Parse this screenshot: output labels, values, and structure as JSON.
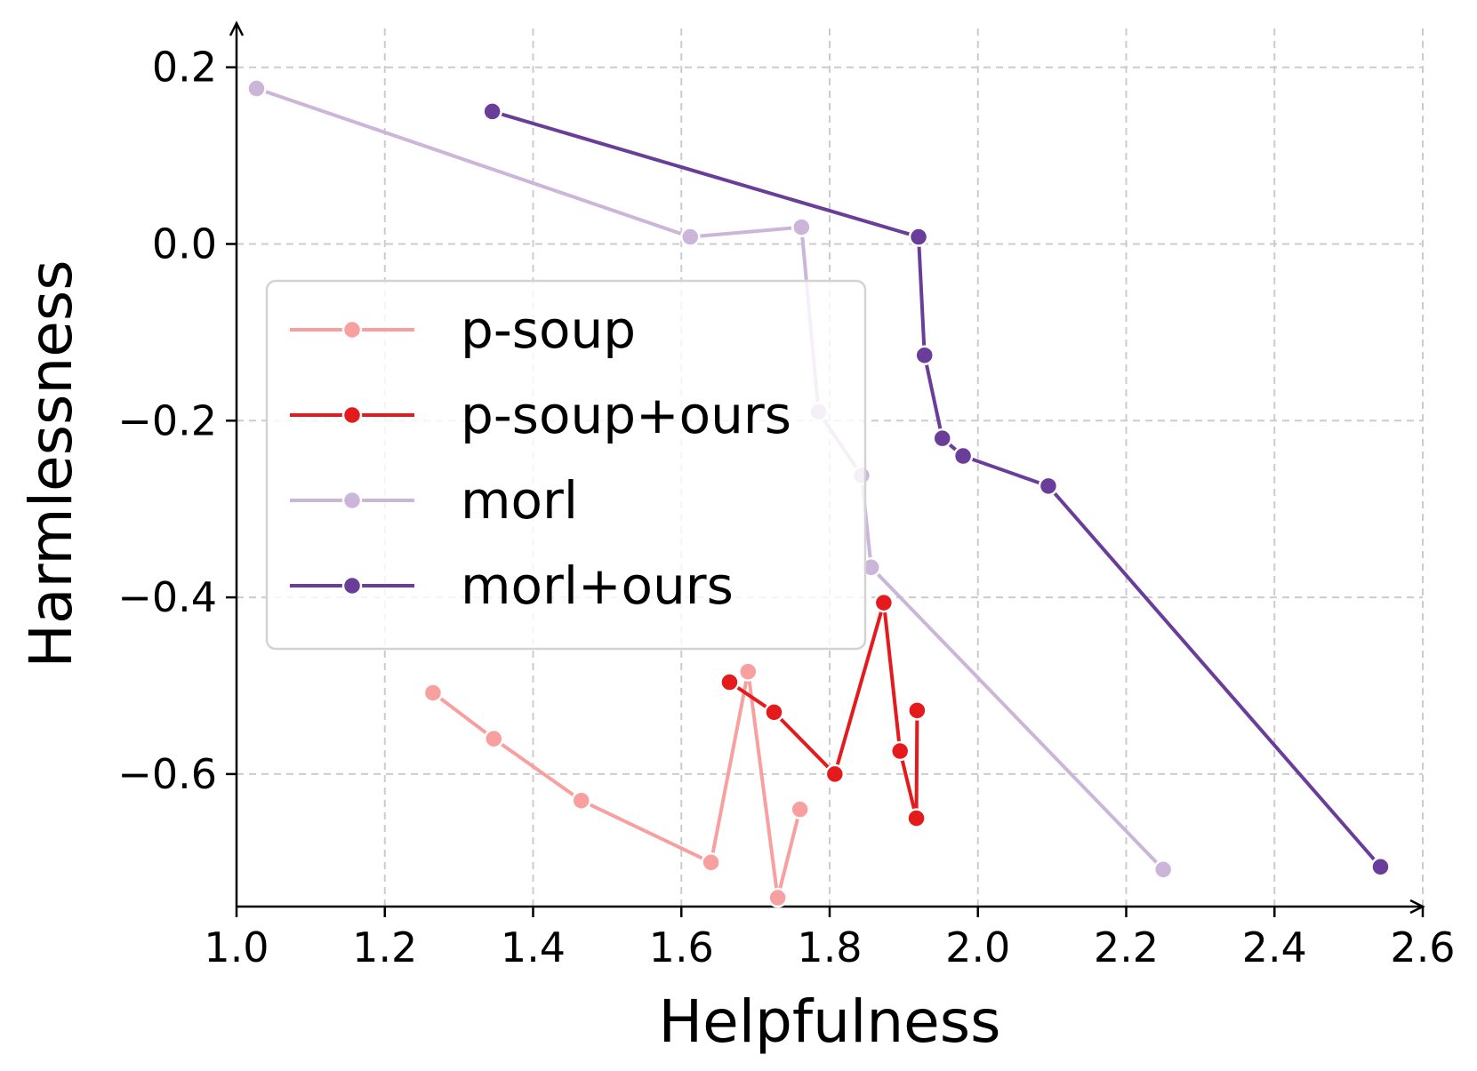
{
  "chart_data": {
    "type": "line",
    "xlabel": "Helpfulness",
    "ylabel": "Harmlessness",
    "xlim": [
      1.0,
      2.6
    ],
    "ylim": [
      -0.75,
      0.25
    ],
    "xticks": [
      1.0,
      1.2,
      1.4,
      1.6,
      1.8,
      2.0,
      2.2,
      2.4,
      2.6
    ],
    "xtick_labels": [
      "1.0",
      "1.2",
      "1.4",
      "1.6",
      "1.8",
      "2.0",
      "2.2",
      "2.4",
      "2.6"
    ],
    "yticks": [
      0.2,
      0.0,
      -0.2,
      -0.4,
      -0.6
    ],
    "ytick_labels": [
      "0.2",
      "0.0",
      "−0.2",
      "−0.4",
      "−0.6"
    ],
    "grid": true,
    "legend_position": "center-left",
    "series": [
      {
        "name": "p-soup",
        "color": "#f7a09f",
        "points": [
          [
            1.265,
            -0.508
          ],
          [
            1.347,
            -0.56
          ],
          [
            1.465,
            -0.63
          ],
          [
            1.64,
            -0.7
          ],
          [
            1.69,
            -0.484
          ],
          [
            1.73,
            -0.74
          ],
          [
            1.76,
            -0.64
          ]
        ]
      },
      {
        "name": "p-soup+ours",
        "color": "#e41a1c",
        "points": [
          [
            1.665,
            -0.496
          ],
          [
            1.725,
            -0.53
          ],
          [
            1.807,
            -0.6
          ],
          [
            1.873,
            -0.406
          ],
          [
            1.895,
            -0.574
          ],
          [
            1.917,
            -0.65
          ],
          [
            1.918,
            -0.528
          ]
        ]
      },
      {
        "name": "morl",
        "color": "#cbb5d8",
        "points": [
          [
            1.027,
            0.176
          ],
          [
            1.612,
            0.008
          ],
          [
            1.762,
            0.019
          ],
          [
            1.785,
            -0.19
          ],
          [
            1.843,
            -0.262
          ],
          [
            1.856,
            -0.366
          ],
          [
            2.25,
            -0.708
          ]
        ]
      },
      {
        "name": "morl+ours",
        "color": "#6a3d9a",
        "points": [
          [
            1.345,
            0.15
          ],
          [
            1.92,
            0.008
          ],
          [
            1.928,
            -0.126
          ],
          [
            1.952,
            -0.22
          ],
          [
            1.98,
            -0.24
          ],
          [
            2.095,
            -0.274
          ],
          [
            2.543,
            -0.705
          ]
        ]
      }
    ]
  }
}
